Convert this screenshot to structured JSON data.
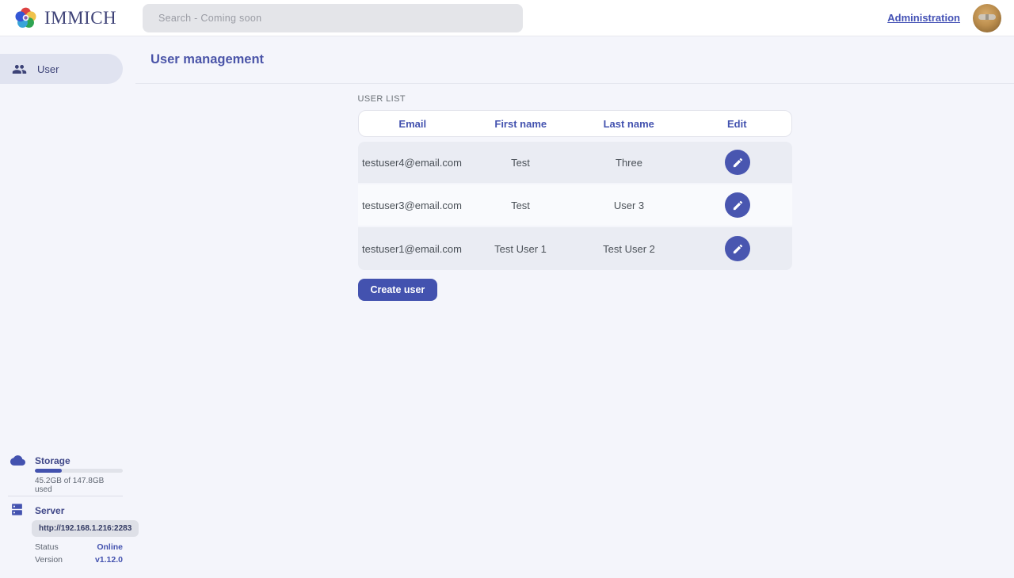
{
  "topbar": {
    "brand": "IMMICH",
    "search_placeholder": "Search - Coming soon",
    "admin_link": "Administration"
  },
  "sidebar": {
    "items": [
      {
        "label": "User",
        "icon": "users-group-icon",
        "active": true
      }
    ]
  },
  "page": {
    "title": "User management",
    "section_label": "USER LIST"
  },
  "table": {
    "headers": [
      "Email",
      "First name",
      "Last name",
      "Edit"
    ],
    "rows": [
      {
        "email": "testuser4@email.com",
        "first_name": "Test",
        "last_name": "Three"
      },
      {
        "email": "testuser3@email.com",
        "first_name": "Test",
        "last_name": "User 3"
      },
      {
        "email": "testuser1@email.com",
        "first_name": "Test User 1",
        "last_name": "Test User 2"
      }
    ]
  },
  "actions": {
    "create_user_label": "Create user"
  },
  "status_panel": {
    "storage": {
      "title": "Storage",
      "usage_text": "45.2GB of 147.8GB used",
      "percent_used": 30.6
    },
    "server": {
      "title": "Server",
      "url": "http://192.168.1.216:2283",
      "status_label": "Status",
      "status_value": "Online",
      "version_label": "Version",
      "version_value": "v1.12.0"
    }
  },
  "colors": {
    "primary": "#4352af",
    "navy_text": "#3d4377",
    "page_background": "#f4f5fb",
    "row_odd": "#eaecf3",
    "row_even": "#f9fafd",
    "status_online": "#4352af"
  }
}
